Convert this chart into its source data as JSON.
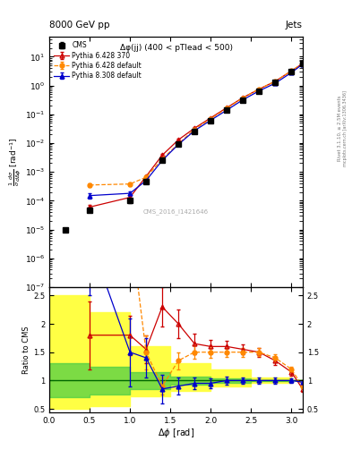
{
  "title_left": "8000 GeV pp",
  "title_right": "Jets",
  "annotation": "Δφ(jj) (400 < pTlead < 500)",
  "watermark": "CMS_2016_I1421646",
  "rivet_label": "Rivet 3.1.10, ≥ 2.5M events",
  "arxiv_label": "mcplots.cern.ch [arXiv:1306.3436]",
  "ylabel_main": "$\\frac{1}{\\sigma}\\frac{d\\sigma}{d\\Delta\\phi}$ [rad$^{-1}$]",
  "ylabel_ratio": "Ratio to CMS",
  "xlabel": "$\\Delta\\phi$ [rad]",
  "xlim": [
    0.0,
    3.14159
  ],
  "ylim_main": [
    1e-07,
    50
  ],
  "ylim_ratio": [
    0.44,
    2.65
  ],
  "cms_x": [
    0.2,
    0.5,
    1.0,
    1.2,
    1.4,
    1.6,
    1.8,
    2.0,
    2.2,
    2.4,
    2.6,
    2.8,
    3.0,
    3.14
  ],
  "cms_y": [
    1e-05,
    4.5e-05,
    0.0001,
    0.00045,
    0.0025,
    0.009,
    0.025,
    0.06,
    0.14,
    0.32,
    0.65,
    1.3,
    3.0,
    6.0
  ],
  "cms_yerr": [
    0,
    5e-06,
    1.5e-05,
    5e-05,
    0.0002,
    0.0005,
    0.0015,
    0.004,
    0.008,
    0.015,
    0.03,
    0.06,
    0.15,
    0.3
  ],
  "p6_370_x": [
    0.5,
    1.0,
    1.2,
    1.4,
    1.6,
    1.8,
    2.0,
    2.2,
    2.4,
    2.6,
    2.8,
    3.0,
    3.14
  ],
  "p6_370_y": [
    6e-05,
    0.00013,
    0.0007,
    0.0038,
    0.013,
    0.033,
    0.075,
    0.17,
    0.38,
    0.75,
    1.4,
    3.2,
    5.8
  ],
  "p6_370_yerr": [
    1e-05,
    2e-05,
    8e-05,
    0.0003,
    0.0008,
    0.002,
    0.004,
    0.008,
    0.018,
    0.035,
    0.06,
    0.14,
    0.25
  ],
  "p6_def_x": [
    0.5,
    1.0,
    1.2,
    1.4,
    1.6,
    1.8,
    2.0,
    2.2,
    2.4,
    2.6,
    2.8,
    3.0,
    3.14
  ],
  "p6_def_y": [
    0.00035,
    0.00038,
    0.00065,
    0.0028,
    0.0095,
    0.03,
    0.07,
    0.16,
    0.37,
    0.75,
    1.4,
    3.2,
    5.9
  ],
  "p6_def_yerr": [
    5e-05,
    5e-05,
    8e-05,
    0.00025,
    0.0007,
    0.0015,
    0.0035,
    0.008,
    0.017,
    0.035,
    0.06,
    0.14,
    0.25
  ],
  "p8_def_x": [
    0.5,
    1.0,
    1.2,
    1.4,
    1.6,
    1.8,
    2.0,
    2.2,
    2.4,
    2.6,
    2.8,
    3.0,
    3.14
  ],
  "p8_def_y": [
    0.00015,
    0.00018,
    0.0005,
    0.0025,
    0.009,
    0.027,
    0.062,
    0.14,
    0.32,
    0.65,
    1.2,
    2.8,
    5.5
  ],
  "p8_def_yerr": [
    3e-05,
    3e-05,
    6e-05,
    0.0002,
    0.0006,
    0.0012,
    0.003,
    0.007,
    0.015,
    0.03,
    0.05,
    0.12,
    0.22
  ],
  "cms_color": "#000000",
  "p6_370_color": "#cc0000",
  "p6_def_color": "#ff8800",
  "p8_def_color": "#0000cc",
  "ratio_p6_370_y": [
    1.8,
    1.8,
    1.55,
    2.3,
    2.0,
    1.65,
    1.6,
    1.6,
    1.55,
    1.5,
    1.35,
    1.15,
    0.85
  ],
  "ratio_p6_370_err": [
    0.6,
    0.35,
    0.25,
    0.35,
    0.25,
    0.18,
    0.12,
    0.1,
    0.09,
    0.08,
    0.07,
    0.06,
    0.05
  ],
  "ratio_p6_def_y": [
    8.0,
    3.8,
    1.5,
    0.9,
    1.35,
    1.5,
    1.5,
    1.5,
    1.5,
    1.5,
    1.4,
    1.2,
    0.9
  ],
  "ratio_p6_def_err": [
    2.0,
    1.0,
    0.3,
    0.15,
    0.15,
    0.12,
    0.1,
    0.08,
    0.08,
    0.07,
    0.06,
    0.05,
    0.04
  ],
  "ratio_p8_def_y": [
    3.5,
    1.5,
    1.4,
    0.85,
    0.9,
    0.95,
    0.95,
    1.0,
    1.0,
    1.0,
    1.0,
    1.0,
    0.97
  ],
  "ratio_p8_def_err": [
    1.0,
    0.6,
    0.35,
    0.25,
    0.15,
    0.1,
    0.08,
    0.07,
    0.06,
    0.05,
    0.05,
    0.04,
    0.04
  ],
  "green_band_x": [
    0.0,
    0.5,
    1.0,
    1.5,
    2.0,
    2.5,
    3.0,
    3.14
  ],
  "green_band_lo": [
    0.7,
    0.75,
    0.85,
    0.93,
    0.96,
    0.99,
    1.0,
    1.0
  ],
  "green_band_hi": [
    1.3,
    1.25,
    1.15,
    1.07,
    1.04,
    1.01,
    1.0,
    1.0
  ],
  "yellow_band_x": [
    0.0,
    0.5,
    1.0,
    1.5,
    2.0,
    2.5,
    3.0,
    3.14
  ],
  "yellow_band_lo": [
    0.5,
    0.55,
    0.72,
    0.82,
    0.9,
    0.96,
    1.0,
    1.0
  ],
  "yellow_band_hi": [
    2.5,
    2.2,
    1.6,
    1.3,
    1.2,
    1.06,
    1.0,
    1.0
  ]
}
